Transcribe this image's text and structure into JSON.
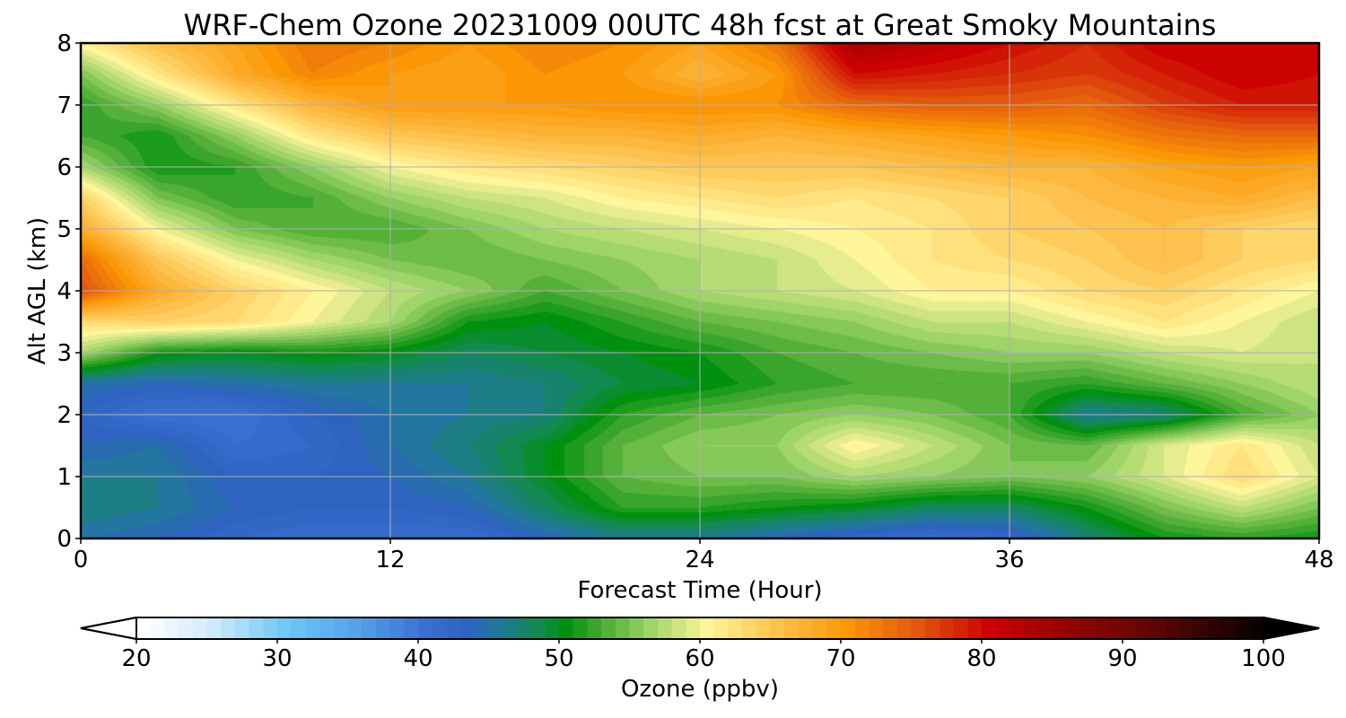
{
  "chart_data": {
    "type": "heatmap",
    "title": "WRF-Chem Ozone  20231009 00UTC 48h fcst at Great Smoky Mountains",
    "xlabel": "Forecast Time (Hour)",
    "ylabel": "Alt AGL (km)",
    "xlim": [
      0,
      48
    ],
    "ylim": [
      0,
      8
    ],
    "x_ticks": [
      0,
      12,
      24,
      36,
      48
    ],
    "y_ticks": [
      0,
      1,
      2,
      3,
      4,
      5,
      6,
      7,
      8
    ],
    "grid": true,
    "x": [
      0,
      3,
      6,
      9,
      12,
      15,
      18,
      21,
      24,
      27,
      30,
      33,
      36,
      39,
      42,
      45,
      48
    ],
    "y": [
      0,
      0.5,
      1,
      1.5,
      2,
      2.5,
      3,
      3.5,
      4,
      4.5,
      5,
      5.5,
      6,
      6.5,
      7,
      7.5,
      8
    ],
    "z": [
      [
        45,
        44,
        42,
        41,
        41,
        41,
        44,
        46,
        46,
        44,
        42,
        41,
        42,
        47,
        51,
        52,
        51
      ],
      [
        47,
        46,
        44,
        43,
        43,
        44,
        48,
        52,
        52,
        51,
        50,
        48,
        48,
        51,
        55,
        58,
        55
      ],
      [
        46,
        46,
        43,
        43,
        44,
        46,
        50,
        54,
        55,
        55,
        57,
        56,
        55,
        56,
        59,
        63,
        59
      ],
      [
        44,
        45,
        41,
        42,
        45,
        47,
        50,
        54,
        56,
        56,
        61,
        58,
        55,
        54,
        59,
        62,
        58
      ],
      [
        43,
        40,
        40,
        43,
        45,
        46,
        47,
        52,
        54,
        55,
        56,
        55,
        53,
        46,
        47,
        53,
        56
      ],
      [
        45,
        44,
        45,
        46,
        46,
        46,
        47,
        49,
        50,
        52,
        53,
        53,
        53,
        52,
        54,
        56,
        58
      ],
      [
        57,
        51,
        50,
        51,
        50,
        48,
        49,
        50,
        51,
        53,
        54,
        55,
        56,
        56,
        58,
        59,
        58
      ],
      [
        63,
        64,
        63,
        60,
        57,
        51,
        50,
        52,
        54,
        55,
        56,
        58,
        58,
        60,
        62,
        60,
        58
      ],
      [
        76,
        68,
        64,
        61,
        58,
        56,
        53,
        55,
        57,
        58,
        59,
        61,
        61,
        63,
        64,
        62,
        60
      ],
      [
        74,
        65,
        60,
        57,
        55,
        54,
        55,
        56,
        57,
        58,
        60,
        62,
        63,
        64,
        66,
        64,
        63
      ],
      [
        68,
        60,
        55,
        53,
        53,
        55,
        57,
        58,
        59,
        60,
        61,
        62,
        64,
        65,
        66,
        64,
        63
      ],
      [
        64,
        55,
        52,
        53,
        56,
        58,
        59,
        61,
        62,
        63,
        62,
        63,
        64,
        66,
        67,
        68,
        66
      ],
      [
        57,
        51,
        52,
        56,
        60,
        62,
        63,
        64,
        65,
        65,
        65,
        66,
        67,
        67,
        69,
        70,
        69
      ],
      [
        53,
        51,
        56,
        62,
        65,
        66,
        67,
        67,
        68,
        67,
        68,
        69,
        70,
        71,
        73,
        74,
        74
      ],
      [
        52,
        56,
        62,
        67,
        70,
        70,
        70,
        71,
        71,
        71,
        74,
        75,
        75,
        74,
        77,
        79,
        79
      ],
      [
        55,
        62,
        68,
        72,
        70,
        69,
        71,
        70,
        67,
        70,
        80,
        79,
        78,
        77,
        79,
        81,
        80
      ],
      [
        61,
        66,
        69,
        73,
        72,
        70,
        72,
        71,
        69,
        73,
        84,
        82,
        80,
        78,
        81,
        81,
        80
      ]
    ],
    "colorbar": {
      "label": "Ozone  (ppbv)",
      "min": 20,
      "max": 100,
      "ticks": [
        20,
        30,
        40,
        50,
        60,
        70,
        80,
        90,
        100
      ],
      "extend": "both",
      "palette": [
        {
          "v": 20,
          "c": "#ffffff"
        },
        {
          "v": 25,
          "c": "#cfe9fb"
        },
        {
          "v": 30,
          "c": "#6fc8f5"
        },
        {
          "v": 35,
          "c": "#56a3ea"
        },
        {
          "v": 40,
          "c": "#3a6fd1"
        },
        {
          "v": 43,
          "c": "#2e63bf"
        },
        {
          "v": 45,
          "c": "#22769f"
        },
        {
          "v": 48,
          "c": "#138a52"
        },
        {
          "v": 50,
          "c": "#00900f"
        },
        {
          "v": 53,
          "c": "#55b03a"
        },
        {
          "v": 56,
          "c": "#9ed46a"
        },
        {
          "v": 60,
          "c": "#fff59a"
        },
        {
          "v": 65,
          "c": "#fdc24e"
        },
        {
          "v": 70,
          "c": "#fb9605"
        },
        {
          "v": 75,
          "c": "#e2560e"
        },
        {
          "v": 80,
          "c": "#cc0202"
        },
        {
          "v": 85,
          "c": "#9a0101"
        },
        {
          "v": 90,
          "c": "#6e0606"
        },
        {
          "v": 95,
          "c": "#3a0303"
        },
        {
          "v": 100,
          "c": "#000000"
        }
      ]
    }
  }
}
